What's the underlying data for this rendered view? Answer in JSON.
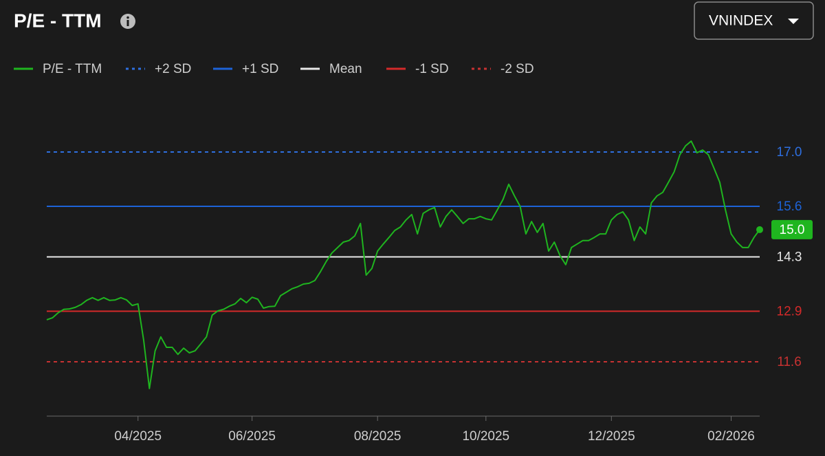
{
  "chart_data": {
    "type": "line",
    "title": "P/E - TTM",
    "index_selector": "VNINDEX",
    "categories": [
      null,
      null,
      null,
      null,
      null,
      null,
      null,
      null,
      null,
      null,
      null,
      null,
      null,
      null,
      null,
      null,
      "04/2025",
      null,
      null,
      null,
      null,
      null,
      null,
      null,
      null,
      null,
      null,
      null,
      null,
      null,
      null,
      null,
      null,
      null,
      null,
      null,
      "06/2025",
      null,
      null,
      null,
      null,
      null,
      null,
      null,
      null,
      null,
      null,
      null,
      null,
      null,
      null,
      null,
      null,
      null,
      null,
      null,
      null,
      null,
      "08/2025",
      null,
      null,
      null,
      null,
      null,
      null,
      null,
      null,
      null,
      null,
      null,
      null,
      null,
      null,
      null,
      null,
      null,
      null,
      "10/2025",
      null,
      null,
      null,
      null,
      null,
      null,
      null,
      null,
      null,
      null,
      null,
      null,
      null,
      null,
      null,
      null,
      null,
      null,
      null,
      null,
      null,
      "12/2025",
      null,
      null,
      null,
      null,
      null,
      null,
      null,
      null,
      null,
      null,
      null,
      null,
      null,
      null,
      null,
      null,
      null,
      null,
      null,
      null,
      "02/2026",
      null,
      null,
      null,
      null,
      null
    ],
    "series": [
      {
        "name": "P/E - TTM",
        "color": "#1fb51f",
        "values": [
          12.68,
          12.73,
          12.86,
          12.95,
          12.96,
          13.0,
          13.07,
          13.18,
          13.25,
          13.18,
          13.25,
          13.18,
          13.19,
          13.25,
          13.19,
          13.05,
          13.09,
          12.15,
          10.91,
          11.88,
          12.24,
          11.97,
          11.97,
          11.79,
          11.95,
          11.83,
          11.88,
          12.06,
          12.24,
          12.8,
          12.91,
          12.95,
          13.03,
          13.09,
          13.23,
          13.12,
          13.26,
          13.21,
          12.98,
          13.02,
          13.03,
          13.3,
          13.39,
          13.48,
          13.53,
          13.6,
          13.62,
          13.69,
          13.92,
          14.18,
          14.4,
          14.54,
          14.68,
          14.72,
          14.84,
          15.16,
          13.83,
          14.0,
          14.45,
          14.63,
          14.8,
          14.98,
          15.07,
          15.25,
          15.39,
          14.89,
          15.42,
          15.51,
          15.57,
          15.07,
          15.34,
          15.51,
          15.34,
          15.16,
          15.28,
          15.28,
          15.34,
          15.28,
          15.25,
          15.51,
          15.78,
          16.17,
          15.87,
          15.6,
          14.89,
          15.21,
          14.93,
          15.16,
          14.45,
          14.68,
          14.33,
          14.1,
          14.54,
          14.63,
          14.72,
          14.72,
          14.8,
          14.89,
          14.89,
          15.25,
          15.39,
          15.46,
          15.25,
          14.72,
          15.07,
          14.89,
          15.69,
          15.87,
          15.96,
          16.22,
          16.49,
          16.93,
          17.16,
          17.28,
          16.98,
          17.05,
          16.93,
          16.58,
          16.22,
          15.51,
          14.89,
          14.68,
          14.54,
          14.54,
          14.8,
          15.0
        ],
        "value_labels": [
          null,
          null,
          null,
          null,
          null,
          null,
          null,
          null,
          null,
          null,
          null,
          null,
          null,
          null,
          null,
          null,
          null,
          null,
          null,
          null,
          null,
          null,
          null,
          null,
          null,
          null,
          null,
          null,
          null,
          null,
          null,
          null,
          null,
          null,
          null,
          null,
          null,
          null,
          null,
          null,
          null,
          null,
          null,
          null,
          null,
          null,
          null,
          null,
          null,
          null,
          null,
          null,
          null,
          null,
          null,
          null,
          null,
          null,
          null,
          null,
          null,
          null,
          null,
          null,
          null,
          null,
          null,
          null,
          null,
          null,
          null,
          null,
          null,
          null,
          null,
          null,
          null,
          null,
          null,
          null,
          null,
          null,
          null,
          null,
          null,
          null,
          null,
          null,
          null,
          null,
          null,
          null,
          null,
          null,
          null,
          null,
          null,
          null,
          null,
          null,
          null,
          null,
          null,
          null,
          null,
          null,
          null,
          null,
          null,
          null,
          null,
          null,
          null,
          null,
          null,
          null,
          null,
          null,
          null,
          null,
          null,
          null,
          null,
          null,
          null,
          "15.0"
        ]
      },
      {
        "name": "+2 SD",
        "color": "#2e6fe0",
        "dashed": true,
        "value": 17.0,
        "label": "17.0"
      },
      {
        "name": "+1 SD",
        "color": "#1d63d8",
        "dashed": false,
        "value": 15.6
      },
      {
        "name": "Mean",
        "color": "#e8e8e8",
        "dashed": false,
        "value": 14.3
      },
      {
        "name": "-1 SD",
        "color": "#d42a2a",
        "dashed": false,
        "value": 12.9
      },
      {
        "name": "-2 SD",
        "color": "#c83232",
        "dashed": true,
        "value": 11.6
      }
    ],
    "ylim": [
      10.2,
      18.08
    ]
  }
}
